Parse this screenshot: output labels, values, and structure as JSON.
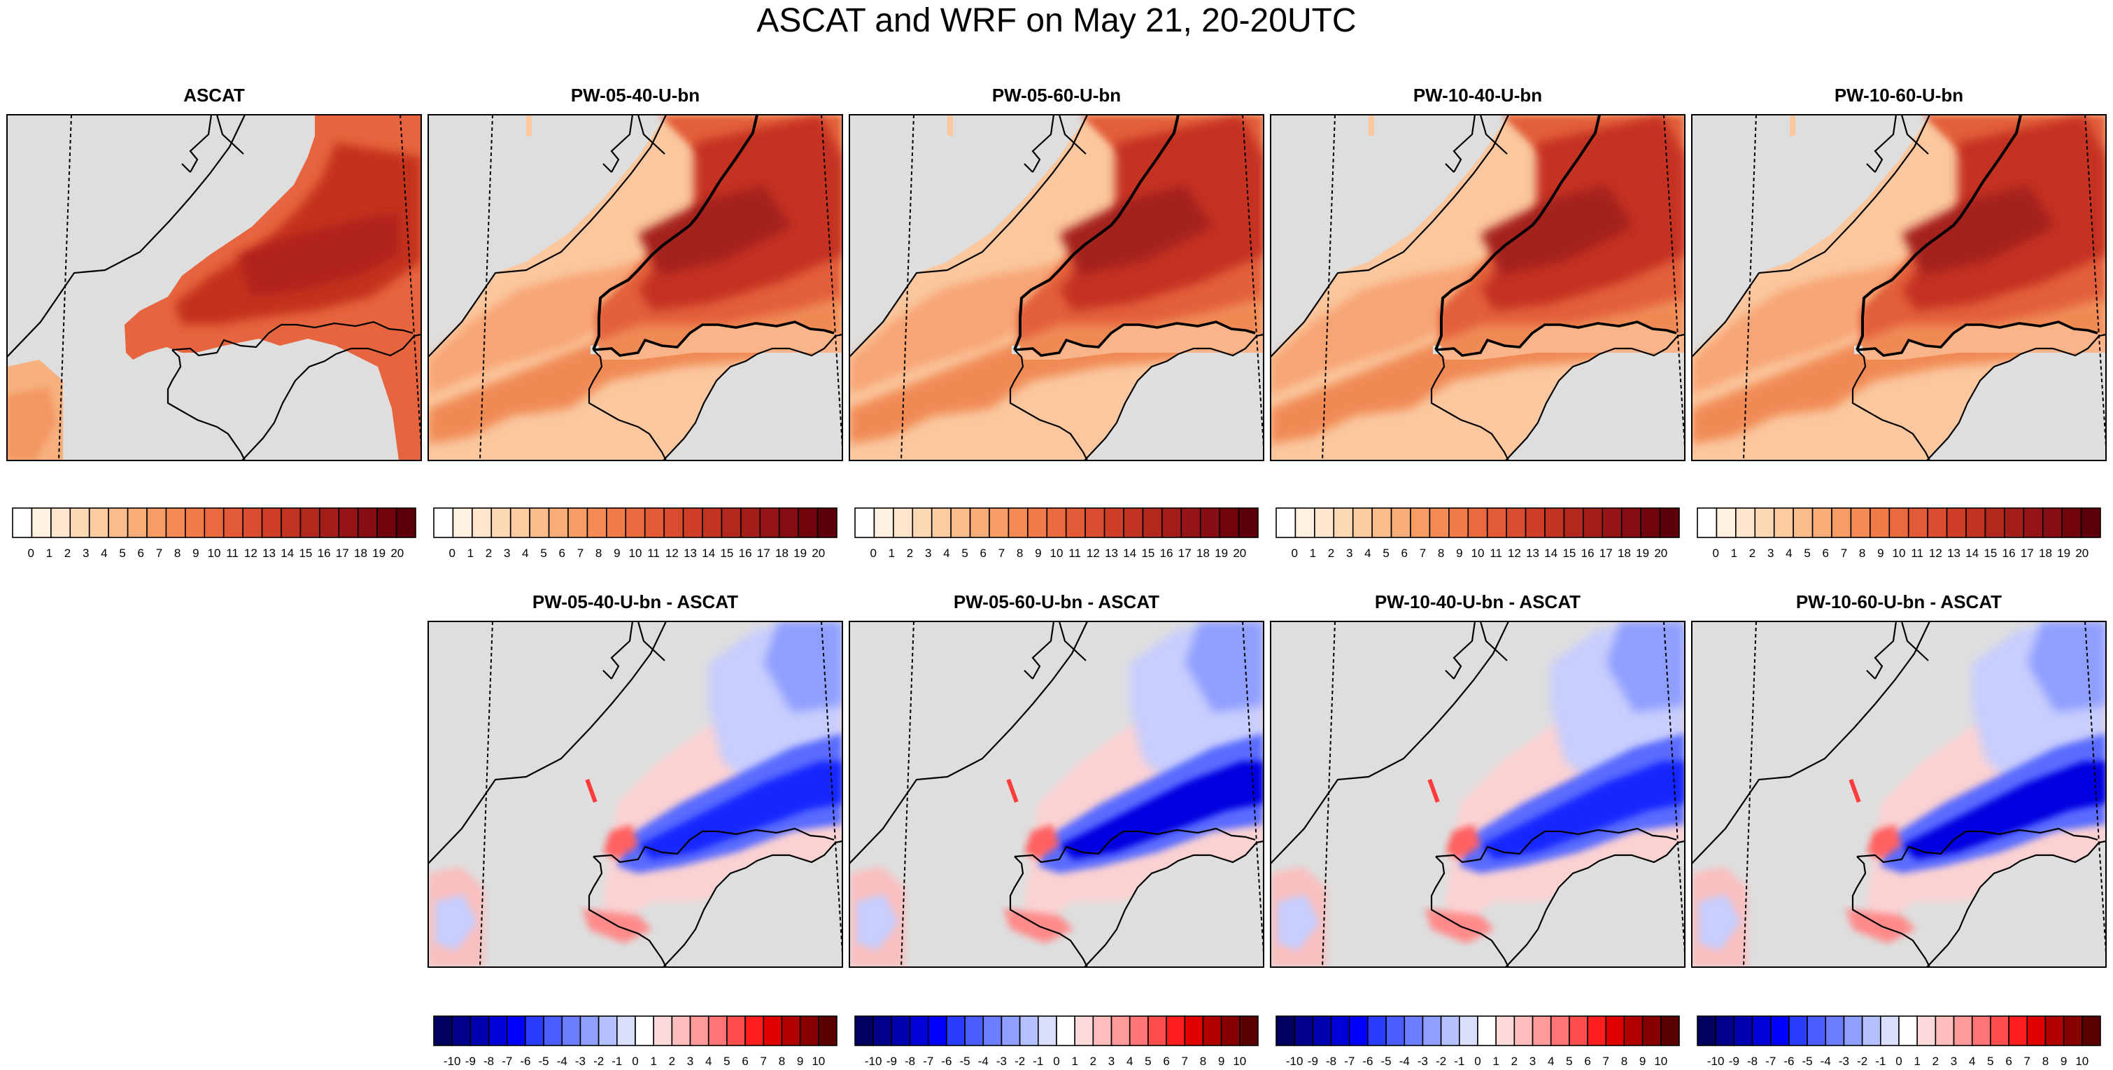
{
  "title": "ASCAT and WRF on May 21, 20-20UTC",
  "wind_colorbar": {
    "ticks": [
      "0",
      "1",
      "2",
      "3",
      "4",
      "5",
      "6",
      "7",
      "8",
      "9",
      "10",
      "11",
      "12",
      "13",
      "14",
      "15",
      "16",
      "17",
      "18",
      "19",
      "20"
    ],
    "colors": [
      "#ffffff",
      "#fff1e2",
      "#fee5cc",
      "#fdd8b5",
      "#fccba0",
      "#fbbd8c",
      "#f9ad78",
      "#f79c65",
      "#f48b55",
      "#f07a49",
      "#ea6a3f",
      "#e35b36",
      "#da4c2f",
      "#cf3f28",
      "#c23322",
      "#b2281d",
      "#a41e19",
      "#951517",
      "#850d13",
      "#72040e",
      "#5e000a"
    ]
  },
  "diff_colorbar": {
    "ticks": [
      "-10",
      "-9",
      "-8",
      "-7",
      "-6",
      "-5",
      "-4",
      "-3",
      "-2",
      "-1",
      "0",
      "1",
      "2",
      "3",
      "4",
      "5",
      "6",
      "7",
      "8",
      "9",
      "10"
    ],
    "colors": [
      "#000060",
      "#00008a",
      "#0000b0",
      "#0000d8",
      "#0000ff",
      "#2a3cff",
      "#4a5eff",
      "#6c7eff",
      "#8f9fff",
      "#b4c0ff",
      "#d8defc",
      "#ffffff",
      "#fcdada",
      "#ffbdbd",
      "#ff9a9a",
      "#ff7474",
      "#ff4d4d",
      "#ff1e1e",
      "#e00000",
      "#b20000",
      "#880000",
      "#5a0000"
    ]
  },
  "chart_data": [
    {
      "type": "heatmap",
      "title": "ASCAT",
      "variable": "wind speed",
      "colorbar_ticks": [
        0,
        20
      ]
    },
    {
      "type": "heatmap",
      "title": "PW-05-40-U-bn",
      "variable": "wind speed",
      "colorbar_ticks": [
        0,
        20
      ]
    },
    {
      "type": "heatmap",
      "title": "PW-05-60-U-bn",
      "variable": "wind speed",
      "colorbar_ticks": [
        0,
        20
      ]
    },
    {
      "type": "heatmap",
      "title": "PW-10-40-U-bn",
      "variable": "wind speed",
      "colorbar_ticks": [
        0,
        20
      ]
    },
    {
      "type": "heatmap",
      "title": "PW-10-60-U-bn",
      "variable": "wind speed",
      "colorbar_ticks": [
        0,
        20
      ]
    },
    {
      "type": "heatmap",
      "title": "PW-05-40-U-bn - ASCAT",
      "variable": "difference",
      "colorbar_ticks": [
        -10,
        10
      ]
    },
    {
      "type": "heatmap",
      "title": "PW-05-60-U-bn - ASCAT",
      "variable": "difference",
      "colorbar_ticks": [
        -10,
        10
      ]
    },
    {
      "type": "heatmap",
      "title": "PW-10-40-U-bn - ASCAT",
      "variable": "difference",
      "colorbar_ticks": [
        -10,
        10
      ]
    },
    {
      "type": "heatmap",
      "title": "PW-10-60-U-bn - ASCAT",
      "variable": "difference",
      "colorbar_ticks": [
        -10,
        10
      ]
    }
  ]
}
